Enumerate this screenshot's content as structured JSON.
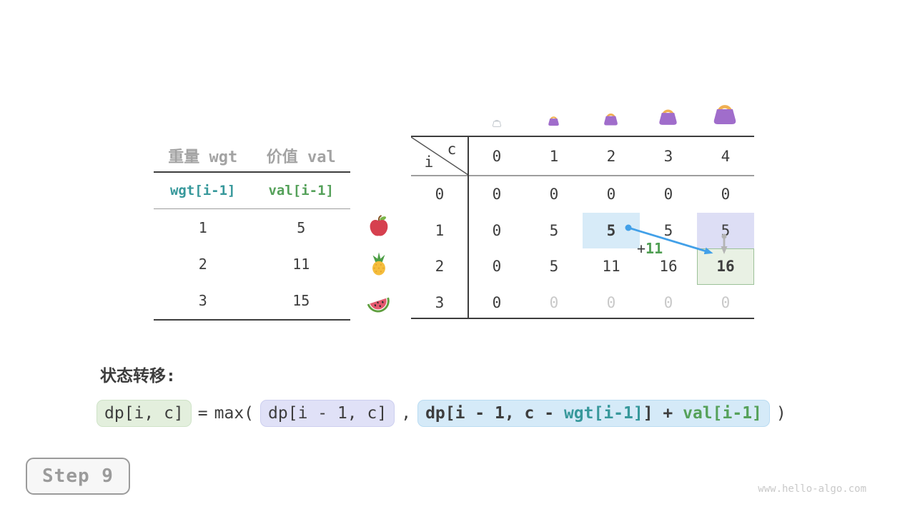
{
  "page": {
    "step_label": "Step 9",
    "watermark": "www.hello-algo.com"
  },
  "items_table": {
    "col_headers": [
      "重量 wgt",
      "价值 val"
    ],
    "sub_headers": [
      {
        "text": "wgt[i-1]",
        "color": "teal"
      },
      {
        "text": "val[i-1]",
        "color": "green"
      }
    ],
    "rows": [
      {
        "wgt": "1",
        "val": "5",
        "fruit": "apple-icon"
      },
      {
        "wgt": "2",
        "val": "11",
        "fruit": "pineapple-icon"
      },
      {
        "wgt": "3",
        "val": "15",
        "fruit": "watermelon-icon"
      }
    ]
  },
  "dp_table": {
    "corner": {
      "row_var": "i",
      "col_var": "c"
    },
    "col_headers": [
      "0",
      "1",
      "2",
      "3",
      "4"
    ],
    "row_headers": [
      "0",
      "1",
      "2",
      "3"
    ],
    "cells": [
      [
        "0",
        "0",
        "0",
        "0",
        "0"
      ],
      [
        "0",
        "5",
        "5",
        "5",
        "5"
      ],
      [
        "0",
        "5",
        "11",
        "16",
        "16"
      ],
      [
        "0",
        "0",
        "0",
        "0",
        "0"
      ]
    ],
    "cell_styles": [
      [
        "",
        "",
        "",
        "",
        ""
      ],
      [
        "",
        "",
        "bold hl-blue",
        "",
        "hl-lavender"
      ],
      [
        "",
        "",
        "",
        "",
        "bold hl-green"
      ],
      [
        "",
        "gray",
        "gray",
        "gray",
        "gray"
      ]
    ],
    "annotation": {
      "plus": "+",
      "value": "11"
    },
    "bag_icons": [
      "empty-bag-icon",
      "bag-icon-small",
      "bag-icon-medium",
      "bag-icon-large",
      "bag-icon-xlarge"
    ]
  },
  "transition": {
    "title": "状态转移:",
    "lhs": "dp[i, c]",
    "equals": "=",
    "max_open": "max(",
    "arg1": "dp[i - 1, c]",
    "comma": ",",
    "arg2_parts": [
      {
        "text": "dp[i - 1, c - ",
        "color": "dark"
      },
      {
        "text": "wgt[i-1]",
        "color": "teal"
      },
      {
        "text": "] + ",
        "color": "dark"
      },
      {
        "text": "val[i-1]",
        "color": "green"
      }
    ],
    "close_paren": ")"
  },
  "colors": {
    "text_dark": "#3d3d3d",
    "header_gray": "#a3a3a3",
    "muted_gray": "#c9c9c9",
    "teal": "#37989b",
    "green": "#55a15a",
    "arrow_blue": "#42a0e8",
    "arrow_gray": "#b4b4b4",
    "highlight_blue": "#d7ebf8",
    "highlight_lavender": "#dddef5",
    "highlight_green": "#e9f1e4",
    "highlight_green_border": "#9cc198",
    "bag_purple": "#a06dcb",
    "bag_handle_gold": "#f0b052"
  }
}
